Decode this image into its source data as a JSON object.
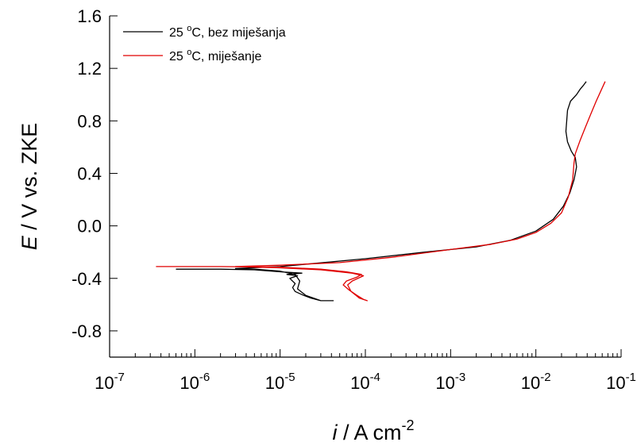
{
  "chart_data": {
    "type": "line",
    "title": "",
    "xlabel": {
      "italic": "i",
      "rest": " / A cm",
      "sup": "-2"
    },
    "ylabel": {
      "italic": "E",
      "rest": " / V vs. ZKE"
    },
    "x_scale": "log",
    "xlim": [
      1e-07,
      0.1
    ],
    "ylim": [
      -1.0,
      1.6
    ],
    "x_ticks": [
      {
        "value": 1e-07,
        "base": "10",
        "exp": "-7"
      },
      {
        "value": 1e-06,
        "base": "10",
        "exp": "-6"
      },
      {
        "value": 1e-05,
        "base": "10",
        "exp": "-5"
      },
      {
        "value": 0.0001,
        "base": "10",
        "exp": "-4"
      },
      {
        "value": 0.001,
        "base": "10",
        "exp": "-3"
      },
      {
        "value": 0.01,
        "base": "10",
        "exp": "-2"
      },
      {
        "value": 0.1,
        "base": "10",
        "exp": "-1"
      }
    ],
    "y_ticks": [
      {
        "value": -0.8,
        "label": "-0.8"
      },
      {
        "value": -0.4,
        "label": "-0.4"
      },
      {
        "value": 0.0,
        "label": "0.0"
      },
      {
        "value": 0.4,
        "label": "0.4"
      },
      {
        "value": 0.8,
        "label": "0.8"
      },
      {
        "value": 1.2,
        "label": "1.2"
      },
      {
        "value": 1.6,
        "label": "1.6"
      }
    ],
    "grid": false,
    "legend_position": "top-left",
    "series": [
      {
        "name": {
          "pre": "25 ",
          "sup": "o",
          "post": "C, bez miješanja"
        },
        "color": "#000000",
        "points": [
          [
            6e-07,
            -0.33
          ],
          [
            2e-06,
            -0.33
          ],
          [
            5e-06,
            -0.335
          ],
          [
            1e-05,
            -0.35
          ],
          [
            1.8e-05,
            -0.36
          ],
          [
            1.2e-05,
            -0.37
          ],
          [
            1.6e-05,
            -0.38
          ],
          [
            1.3e-05,
            -0.4
          ],
          [
            1.5e-05,
            -0.44
          ],
          [
            1.4e-05,
            -0.47
          ],
          [
            1.5e-05,
            -0.5
          ],
          [
            1.9e-05,
            -0.53
          ],
          [
            2.3e-05,
            -0.55
          ],
          [
            3e-05,
            -0.57
          ],
          [
            4.2e-05,
            -0.57
          ],
          [
            3e-05,
            -0.57
          ],
          [
            2e-05,
            -0.53
          ],
          [
            1.6e-05,
            -0.48
          ],
          [
            1.7e-05,
            -0.42
          ],
          [
            1.5e-05,
            -0.37
          ],
          [
            1e-05,
            -0.345
          ],
          [
            5e-06,
            -0.33
          ],
          [
            3e-06,
            -0.325
          ],
          [
            1e-05,
            -0.31
          ],
          [
            0.0001,
            -0.25
          ],
          [
            0.0005,
            -0.2
          ],
          [
            0.002,
            -0.16
          ],
          [
            0.005,
            -0.11
          ],
          [
            0.01,
            -0.04
          ],
          [
            0.016,
            0.05
          ],
          [
            0.021,
            0.15
          ],
          [
            0.025,
            0.25
          ],
          [
            0.028,
            0.35
          ],
          [
            0.03,
            0.45
          ],
          [
            0.029,
            0.52
          ],
          [
            0.026,
            0.57
          ],
          [
            0.0235,
            0.64
          ],
          [
            0.0225,
            0.72
          ],
          [
            0.023,
            0.8
          ],
          [
            0.0235,
            0.88
          ],
          [
            0.0255,
            0.95
          ],
          [
            0.03,
            1.0
          ],
          [
            0.033,
            1.04
          ],
          [
            0.036,
            1.07
          ],
          [
            0.039,
            1.1
          ]
        ]
      },
      {
        "name": {
          "pre": "25 ",
          "sup": "o",
          "post": "C, miješanje"
        },
        "color": "#e00000",
        "points": [
          [
            3.5e-07,
            -0.31
          ],
          [
            2e-06,
            -0.31
          ],
          [
            1e-05,
            -0.315
          ],
          [
            3e-05,
            -0.33
          ],
          [
            6e-05,
            -0.35
          ],
          [
            9e-05,
            -0.37
          ],
          [
            8e-05,
            -0.39
          ],
          [
            6e-05,
            -0.42
          ],
          [
            5.5e-05,
            -0.45
          ],
          [
            6.5e-05,
            -0.49
          ],
          [
            8e-05,
            -0.53
          ],
          [
            9.5e-05,
            -0.56
          ],
          [
            0.000105,
            -0.57
          ],
          [
            8.5e-05,
            -0.55
          ],
          [
            6.8e-05,
            -0.5
          ],
          [
            6.2e-05,
            -0.45
          ],
          [
            7e-05,
            -0.42
          ],
          [
            9.5e-05,
            -0.38
          ],
          [
            7e-05,
            -0.36
          ],
          [
            3e-05,
            -0.335
          ],
          [
            1e-05,
            -0.32
          ],
          [
            3e-06,
            -0.31
          ],
          [
            1e-05,
            -0.3
          ],
          [
            5e-05,
            -0.28
          ],
          [
            0.0002,
            -0.24
          ],
          [
            0.001,
            -0.18
          ],
          [
            0.003,
            -0.14
          ],
          [
            0.006,
            -0.1
          ],
          [
            0.01,
            -0.05
          ],
          [
            0.015,
            0.02
          ],
          [
            0.02,
            0.1
          ],
          [
            0.024,
            0.22
          ],
          [
            0.027,
            0.35
          ],
          [
            0.028,
            0.48
          ],
          [
            0.029,
            0.55
          ],
          [
            0.033,
            0.65
          ],
          [
            0.038,
            0.75
          ],
          [
            0.044,
            0.85
          ],
          [
            0.051,
            0.95
          ],
          [
            0.058,
            1.03
          ],
          [
            0.065,
            1.1
          ]
        ]
      }
    ]
  }
}
